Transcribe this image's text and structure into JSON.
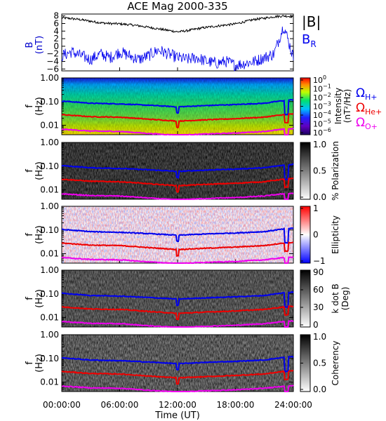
{
  "title": "ACE Mag 2000-335",
  "time_axis": {
    "label": "Time (UT)",
    "ticks": [
      "00:00:00",
      "06:00:00",
      "12:00:00",
      "18:00:00",
      "24:00:00"
    ],
    "values_hours": [
      0,
      6,
      12,
      18,
      24
    ],
    "range_hours": [
      0,
      24
    ]
  },
  "freq_ticks": [
    "1.00",
    "0.10",
    "0.01"
  ],
  "freq_tick_values": [
    1.0,
    0.1,
    0.01
  ],
  "freq_label": "f",
  "freq_unit": "(Hz)",
  "panel1": {
    "ylabel": "B",
    "yunit": "(nT)",
    "legend_B": "|B|",
    "legend_BR_base": "B",
    "legend_BR_sub": "R",
    "color_B": "#000000",
    "color_BR": "#0000ee"
  },
  "gyro_legend": [
    {
      "base": "Ω",
      "sub": "H+",
      "color": "#0000ee"
    },
    {
      "base": "Ω",
      "sub": "He+",
      "color": "#ee0000"
    },
    {
      "base": "Ω",
      "sub": "O+",
      "color": "#ee00ee"
    }
  ],
  "colorbars": {
    "intensity": {
      "label1": "Intensity",
      "label2": "(nT²/Hz)",
      "ticks": [
        {
          "base": "10",
          "exp": "0"
        },
        {
          "base": "10",
          "exp": "−1"
        },
        {
          "base": "10",
          "exp": "−2"
        },
        {
          "base": "10",
          "exp": "−3"
        },
        {
          "base": "10",
          "exp": "−4"
        },
        {
          "base": "10",
          "exp": "−5"
        },
        {
          "base": "10",
          "exp": "−6"
        }
      ]
    },
    "polarization": {
      "label": "% Polarization",
      "ticks": [
        "1.0",
        "0.5",
        "0.0"
      ]
    },
    "ellipticity": {
      "label": "Ellipticity",
      "ticks": [
        "1",
        "0",
        "−1"
      ]
    },
    "kdotb": {
      "label1": "k dot B",
      "label2": "(Deg)",
      "ticks": [
        "90",
        "60",
        "30",
        "0"
      ]
    },
    "coherency": {
      "label": "Coherency",
      "ticks": [
        "1.0",
        "0.5",
        "0.0"
      ]
    }
  },
  "chart_data": [
    {
      "type": "line",
      "title": "ACE Mag 2000-335",
      "ylabel": "B (nT)",
      "ylim": [
        -6.5,
        8.5
      ],
      "yticks": [
        8,
        6,
        4,
        2,
        0,
        -2,
        -4,
        -6
      ],
      "x_hours": [
        0,
        1,
        2,
        3,
        4,
        5,
        6,
        7,
        8,
        9,
        10,
        11,
        12,
        13,
        14,
        15,
        16,
        17,
        18,
        19,
        20,
        21,
        22,
        23,
        24
      ],
      "series": [
        {
          "name": "|B|",
          "values": [
            7.5,
            7.3,
            7.0,
            6.6,
            6.2,
            6.0,
            5.9,
            5.7,
            5.4,
            5.0,
            4.6,
            4.2,
            3.8,
            4.1,
            4.6,
            5.0,
            5.3,
            5.6,
            5.9,
            6.5,
            7.1,
            7.4,
            7.8,
            8.0,
            7.8
          ]
        },
        {
          "name": "B_R",
          "values": [
            -2.5,
            -1.5,
            -2.5,
            -3.5,
            -2.0,
            -3.0,
            -1.5,
            -2.5,
            -3.5,
            -2.5,
            -1.0,
            -2.0,
            -3.0,
            -3.5,
            -3.0,
            -4.0,
            -4.5,
            -4.0,
            -5.0,
            -4.5,
            -4.0,
            -3.0,
            -2.0,
            5.5,
            -3.0
          ]
        }
      ]
    },
    {
      "type": "heatmap",
      "name": "Intensity",
      "ylabel": "f (Hz)",
      "ylim": [
        0.004,
        1.0
      ],
      "yscale": "log",
      "colorbar": "log 1e-6 to 1e0",
      "x_hours": [
        0,
        3,
        6,
        9,
        12,
        15,
        18,
        21,
        23,
        24
      ],
      "series": [
        {
          "name": "Ω H+",
          "values": [
            0.105,
            0.085,
            0.08,
            0.07,
            0.06,
            0.068,
            0.075,
            0.085,
            0.11,
            0.12
          ]
        },
        {
          "name": "Ω He+",
          "values": [
            0.028,
            0.023,
            0.022,
            0.018,
            0.015,
            0.017,
            0.019,
            0.022,
            0.028,
            0.03
          ]
        },
        {
          "name": "Ω O+",
          "values": [
            0.0068,
            0.0057,
            0.0055,
            0.0045,
            0.0038,
            0.0043,
            0.0047,
            0.0055,
            0.0068,
            0.0072
          ]
        }
      ]
    },
    {
      "type": "heatmap",
      "name": "% Polarization",
      "ylabel": "f (Hz)",
      "yscale": "log",
      "colorbar": [
        0,
        1
      ]
    },
    {
      "type": "heatmap",
      "name": "Ellipticity",
      "ylabel": "f (Hz)",
      "yscale": "log",
      "colorbar": [
        -1,
        1
      ]
    },
    {
      "type": "heatmap",
      "name": "k dot B (Deg)",
      "ylabel": "f (Hz)",
      "yscale": "log",
      "colorbar": [
        0,
        90
      ]
    },
    {
      "type": "heatmap",
      "name": "Coherency",
      "ylabel": "f (Hz)",
      "yscale": "log",
      "colorbar": [
        0,
        1
      ]
    }
  ]
}
